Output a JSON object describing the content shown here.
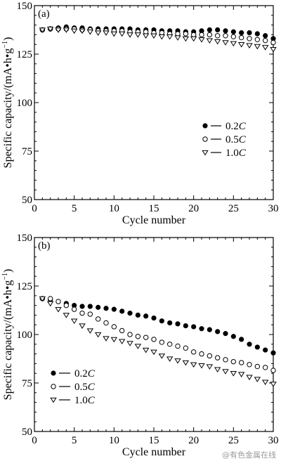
{
  "watermark": "@有色金属在线",
  "chart_data": [
    {
      "type": "scatter",
      "panel_label": "(a)",
      "xlabel": "Cycle number",
      "ylabel": "Specific capacity/(mA•h•g",
      "ylabel_sup": "−1",
      "ylabel_close": ")",
      "xlim": [
        0,
        30
      ],
      "ylim": [
        50,
        150
      ],
      "xticks": [
        0,
        5,
        10,
        15,
        20,
        25,
        30
      ],
      "yticks": [
        50,
        75,
        100,
        125,
        150
      ],
      "legend_position": "center-right",
      "x": [
        1,
        2,
        3,
        4,
        5,
        6,
        7,
        8,
        9,
        10,
        11,
        12,
        13,
        14,
        15,
        16,
        17,
        18,
        19,
        20,
        21,
        22,
        23,
        24,
        25,
        26,
        27,
        28,
        29,
        30
      ],
      "series": [
        {
          "name": "0.2C",
          "name_main": "0.2",
          "name_italic": "C",
          "marker": "filled-circle",
          "values": [
            137.5,
            138,
            138.5,
            139,
            138.5,
            138.5,
            138,
            138,
            138,
            138,
            138,
            138,
            137.5,
            137.5,
            137.5,
            137,
            137,
            137,
            136.5,
            136.5,
            137,
            137.5,
            137.5,
            137,
            136.5,
            136,
            136,
            135.5,
            134.5,
            133
          ]
        },
        {
          "name": "0.5C",
          "name_main": "0.5",
          "name_italic": "C",
          "marker": "open-circle",
          "values": [
            137.5,
            138,
            138,
            138,
            138,
            137.5,
            137.5,
            137,
            137,
            137,
            137,
            136.5,
            136.5,
            136.5,
            136,
            136,
            135.5,
            135.5,
            135.5,
            135,
            135,
            135,
            134.5,
            134.5,
            134,
            133.5,
            133,
            132.5,
            132,
            131
          ]
        },
        {
          "name": "1.0C",
          "name_main": "1.0",
          "name_italic": "C",
          "marker": "open-triangle-down",
          "values": [
            137.5,
            138,
            137.5,
            137.5,
            137,
            137,
            136.5,
            136,
            136,
            135.5,
            135.5,
            135,
            135,
            134.5,
            134.5,
            134,
            134,
            133.5,
            133,
            133,
            132.5,
            132,
            131.5,
            131,
            130.5,
            130,
            129.5,
            129,
            128.5,
            127.5
          ]
        }
      ]
    },
    {
      "type": "scatter",
      "panel_label": "(b)",
      "xlabel": "Cycle number",
      "ylabel": "Specific capacity/(mA•h•g",
      "ylabel_sup": "−1",
      "ylabel_close": ")",
      "xlim": [
        0,
        30
      ],
      "ylim": [
        50,
        150
      ],
      "xticks": [
        0,
        5,
        10,
        15,
        20,
        25,
        30
      ],
      "yticks": [
        50,
        75,
        100,
        125,
        150
      ],
      "legend_position": "lower-left",
      "x": [
        1,
        2,
        3,
        4,
        5,
        6,
        7,
        8,
        9,
        10,
        11,
        12,
        13,
        14,
        15,
        16,
        17,
        18,
        19,
        20,
        21,
        22,
        23,
        24,
        25,
        26,
        27,
        28,
        29,
        30
      ],
      "series": [
        {
          "name": "0.2C",
          "name_main": "0.2",
          "name_italic": "C",
          "marker": "filled-circle",
          "values": [
            118.5,
            118,
            117,
            116,
            115,
            114.5,
            114.5,
            114,
            113.5,
            113,
            112,
            111,
            110,
            109.5,
            108.5,
            107,
            106,
            105.5,
            104.5,
            104,
            103,
            102.5,
            101.5,
            100.5,
            99,
            97.5,
            95,
            93.5,
            92,
            90.5
          ]
        },
        {
          "name": "0.5C",
          "name_main": "0.5",
          "name_italic": "C",
          "marker": "open-circle",
          "values": [
            118.5,
            118.5,
            117,
            115,
            113,
            111,
            110.5,
            108,
            106,
            104,
            102,
            100,
            99,
            98.5,
            97.5,
            96,
            95,
            94,
            93,
            91,
            90,
            89,
            88,
            87,
            86,
            85.5,
            84.5,
            83.5,
            83,
            81.5
          ]
        },
        {
          "name": "1.0C",
          "name_main": "1.0",
          "name_italic": "C",
          "marker": "open-triangle-down",
          "values": [
            118.5,
            116,
            113,
            110,
            107,
            104.5,
            102,
            100,
            98,
            97.5,
            96.5,
            95.5,
            94,
            92,
            91,
            89,
            87.5,
            86.5,
            85.5,
            84.5,
            84,
            83.5,
            82,
            81,
            80,
            79.5,
            78,
            77,
            75.5,
            74.5
          ]
        }
      ]
    }
  ]
}
